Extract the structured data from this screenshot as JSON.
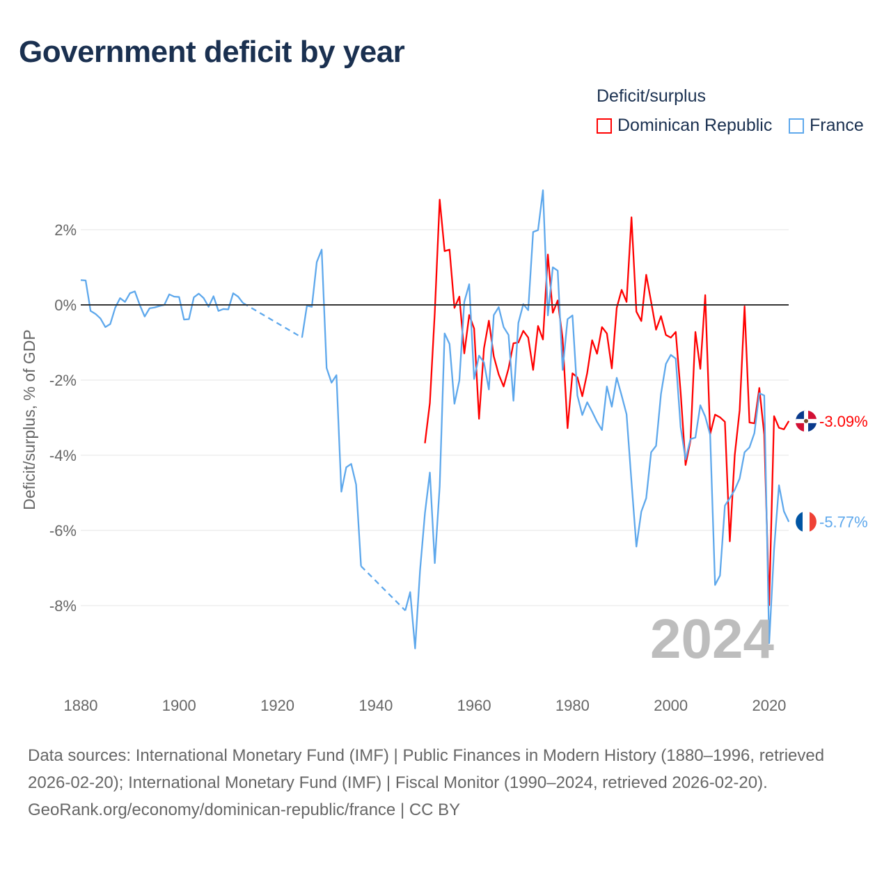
{
  "title": "Government deficit by year",
  "legend": {
    "title": "Deficit/surplus",
    "items": [
      "Dominican Republic",
      "France"
    ]
  },
  "footer": {
    "sources": "Data sources: International Monetary Fund (IMF) | Public Finances in Modern History (1880–1996, retrieved 2026-02-20); International Monetary Fund (IMF) | Fiscal Monitor (1990–2024, retrieved 2026-02-20).",
    "credit": "GeoRank.org/economy/dominican-republic/france | CC BY"
  },
  "colors": {
    "dominican": "#ff0000",
    "france": "#5ea8ec",
    "zero": "#333333",
    "grid": "#e6e6e6",
    "year": "#bdbdbd"
  },
  "chart_data": {
    "type": "line",
    "title": "Government deficit by year",
    "ylabel": "Deficit/surplus, % of GDP",
    "xlabel": "",
    "xlim": [
      1880,
      2024
    ],
    "ylim": [
      -10,
      3
    ],
    "xticks": [
      1880,
      1900,
      1920,
      1940,
      1960,
      1980,
      2000,
      2020
    ],
    "yticks": [
      2,
      0,
      -2,
      -4,
      -6,
      -8
    ],
    "ytick_labels": [
      "2%",
      "0%",
      "-2%",
      "-4%",
      "-6%",
      "-8%"
    ],
    "current_year": "2024",
    "grid": true,
    "legend_position": "top-right",
    "series": [
      {
        "name": "Dominican Republic",
        "end_label": "-3.09%",
        "start_year": 1950,
        "values": [
          -3.68,
          -2.61,
          -0.2,
          2.8,
          1.43,
          1.47,
          -0.08,
          0.22,
          -1.29,
          -0.27,
          -0.63,
          -3.03,
          -1.16,
          -0.42,
          -1.37,
          -1.85,
          -2.17,
          -1.69,
          -1.02,
          -1.0,
          -0.69,
          -0.87,
          -1.73,
          -0.56,
          -0.92,
          1.34,
          -0.21,
          0.12,
          -0.9,
          -3.28,
          -1.82,
          -1.93,
          -2.43,
          -1.81,
          -0.94,
          -1.3,
          -0.59,
          -0.76,
          -1.69,
          -0.08,
          0.4,
          0.08,
          2.33,
          -0.18,
          -0.43,
          0.8,
          0.08,
          -0.66,
          -0.3,
          -0.8,
          -0.87,
          -0.72,
          -2.33,
          -4.26,
          -3.61,
          -0.72,
          -1.7,
          0.26,
          -3.44,
          -2.92,
          -2.99,
          -3.11,
          -6.29,
          -4.0,
          -2.8,
          -0.04,
          -3.13,
          -3.15,
          -2.21,
          -3.45,
          -7.99,
          -2.96,
          -3.27,
          -3.31,
          -3.09
        ]
      },
      {
        "name": "France",
        "end_label": "-5.77%",
        "start_year": 1880,
        "values": [
          0.66,
          0.65,
          -0.16,
          -0.24,
          -0.36,
          -0.59,
          -0.51,
          -0.08,
          0.18,
          0.08,
          0.31,
          0.36,
          0,
          -0.31,
          -0.09,
          -0.07,
          -0.03,
          0,
          0.28,
          0.22,
          0.21,
          -0.39,
          -0.38,
          0.2,
          0.3,
          0.18,
          -0.05,
          0.23,
          -0.16,
          -0.11,
          -0.12,
          0.31,
          0.22,
          0.05,
          null,
          null,
          null,
          null,
          null,
          null,
          null,
          null,
          null,
          null,
          null,
          -0.87,
          -0.02,
          -0.05,
          1.14,
          1.47,
          -1.68,
          -2.07,
          -1.87,
          -4.97,
          -4.32,
          -4.23,
          -4.78,
          -6.95,
          null,
          null,
          null,
          null,
          null,
          null,
          null,
          null,
          -8.13,
          -7.64,
          -9.14,
          -7.07,
          -5.54,
          -4.46,
          -6.87,
          -4.82,
          -0.76,
          -1.04,
          -2.63,
          -2.01,
          0.08,
          0.55,
          -1.97,
          -1.35,
          -1.53,
          -2.25,
          -0.27,
          -0.06,
          -0.59,
          -0.8,
          -2.55,
          -0.48,
          0.02,
          -0.14,
          1.94,
          1.99,
          3.05,
          -0.28,
          1.0,
          0.91,
          -1.73,
          -0.38,
          -0.28,
          -2.41,
          -2.93,
          -2.59,
          -2.84,
          -3.11,
          -3.33,
          -2.17,
          -2.71,
          -1.94,
          -2.41,
          -2.91,
          -4.7,
          -6.43,
          -5.5,
          -5.14,
          -3.92,
          -3.75,
          -2.37,
          -1.57,
          -1.33,
          -1.43,
          -3.25,
          -4.11,
          -3.57,
          -3.53,
          -2.67,
          -2.97,
          -3.45,
          -7.45,
          -7.2,
          -5.34,
          -5.14,
          -4.92,
          -4.62,
          -3.92,
          -3.79,
          -3.41,
          -2.35,
          -2.41,
          -9.0,
          -6.5,
          -4.8,
          -5.49,
          -5.77
        ]
      }
    ]
  }
}
